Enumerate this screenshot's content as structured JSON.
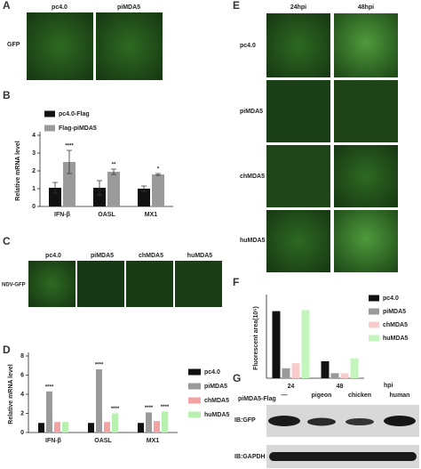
{
  "panels": {
    "A": {
      "letter": "A",
      "columns": [
        "pc4.0",
        "piMDA5"
      ],
      "rows": [
        "GFP"
      ]
    },
    "C": {
      "letter": "C",
      "columns": [
        "pc4.0",
        "piMDA5",
        "chMDA5",
        "huMDA5"
      ],
      "rows": [
        "NDV-GFP"
      ]
    },
    "E": {
      "letter": "E",
      "columns": [
        "24hpi",
        "48hpi"
      ],
      "rows": [
        "pc4.0",
        "piMDA5",
        "chMDA5",
        "huMDA5"
      ]
    },
    "G": {
      "letter": "G",
      "header": "piMDA5-Flag",
      "lanes": [
        "—",
        "pigeon",
        "chicken",
        "human"
      ],
      "rows": [
        "IB:GFP",
        "IB:GAPDH"
      ]
    }
  },
  "chart_data": [
    {
      "type": "bar",
      "label": "B",
      "ylabel": "Relative mRNA level",
      "categories": [
        "IFN-β",
        "OASL",
        "MX1"
      ],
      "series": [
        {
          "name": "pc4.0-Flag",
          "color": "#111111",
          "values": [
            1.05,
            1.05,
            1.0
          ],
          "errors": [
            0.3,
            0.4,
            0.15
          ],
          "significance": [
            null,
            null,
            null
          ]
        },
        {
          "name": "Flag-piMDA5",
          "color": "#9a9a9a",
          "values": [
            2.5,
            1.95,
            1.8
          ],
          "errors": [
            0.65,
            0.15,
            0.05
          ],
          "significance": [
            "****",
            "**",
            "*"
          ]
        }
      ],
      "ylim": [
        0,
        4
      ],
      "yticks": [
        0,
        1,
        2,
        3,
        4
      ]
    },
    {
      "type": "bar",
      "label": "D",
      "ylabel": "Relative mRNA level",
      "categories": [
        "IFN-β",
        "OASL",
        "MX1"
      ],
      "series": [
        {
          "name": "pc4.0",
          "color": "#111111",
          "values": [
            1,
            1,
            1
          ],
          "significance": [
            null,
            null,
            null
          ]
        },
        {
          "name": "piMDA5",
          "color": "#9a9a9a",
          "values": [
            4.3,
            6.6,
            2.1
          ],
          "significance": [
            "****",
            "****",
            "****"
          ]
        },
        {
          "name": "chMDA5",
          "color": "#f4a3a3",
          "values": [
            1.1,
            1.1,
            1.2
          ],
          "significance": [
            null,
            null,
            null
          ]
        },
        {
          "name": "huMDA5",
          "color": "#b8f0b0",
          "values": [
            1.1,
            2.0,
            2.2
          ],
          "significance": [
            null,
            "****",
            "****"
          ]
        }
      ],
      "ylim": [
        0,
        8
      ],
      "yticks": [
        0,
        2,
        4,
        6,
        8
      ]
    },
    {
      "type": "bar",
      "label": "F",
      "ylabel": "Fluorescent area(10⁵)",
      "xlabel": "hpi",
      "categories": [
        "24",
        "48"
      ],
      "series": [
        {
          "name": "pc4.0",
          "color": "#111111",
          "values": [
            6.7,
            1.7
          ]
        },
        {
          "name": "piMDA5",
          "color": "#9a9a9a",
          "values": [
            1.0,
            0.5
          ]
        },
        {
          "name": "chMDA5",
          "color": "#f9cccc",
          "values": [
            1.5,
            0.5
          ]
        },
        {
          "name": "huMDA5",
          "color": "#c4f5bc",
          "values": [
            6.8,
            2.0
          ]
        }
      ],
      "ylim": [
        0,
        8
      ]
    }
  ]
}
